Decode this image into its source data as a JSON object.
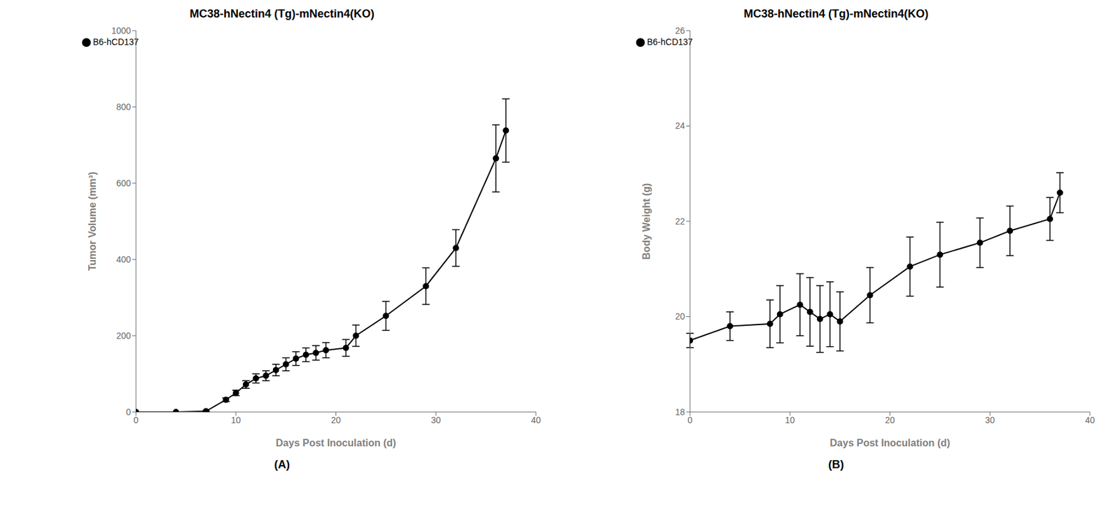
{
  "chart_data": [
    {
      "type": "line",
      "title": "MC38-hNectin4 (Tg)-mNectin4(KO)",
      "x_label": "Days Post Inoculation (d)",
      "y_label": "Tumor Volume (mm³)",
      "annotation": "(A)",
      "x": [
        0,
        4,
        7,
        9,
        10,
        11,
        12,
        13,
        14,
        15,
        16,
        17,
        18,
        19,
        21,
        22,
        25,
        29,
        32,
        36,
        37
      ],
      "series": [
        {
          "name": "B6-hCD137",
          "color": "#000000",
          "marker": "circle",
          "values": [
            0,
            0,
            2,
            32,
            50,
            72,
            88,
            95,
            110,
            125,
            140,
            150,
            155,
            162,
            168,
            200,
            252,
            330,
            430,
            665,
            738
          ],
          "errors": [
            0,
            0,
            1,
            5,
            7,
            10,
            12,
            13,
            15,
            17,
            18,
            18,
            19,
            20,
            22,
            28,
            38,
            48,
            48,
            88,
            83
          ]
        }
      ],
      "xlim": [
        0,
        40
      ],
      "ylim": [
        0,
        1000
      ],
      "xticks": [
        0,
        10,
        20,
        30,
        40
      ],
      "yticks": [
        0,
        200,
        400,
        600,
        800,
        1000
      ],
      "legend": "upper left",
      "grid": false
    },
    {
      "type": "line",
      "title": "MC38-hNectin4 (Tg)-mNectin4(KO)",
      "x_label": "Days Post Inoculation (d)",
      "y_label": "Body Weight (g)",
      "annotation": "(B)",
      "x": [
        0,
        4,
        8,
        9,
        11,
        12,
        13,
        14,
        15,
        18,
        22,
        25,
        29,
        32,
        36,
        37
      ],
      "series": [
        {
          "name": "B6-hCD137",
          "color": "#000000",
          "marker": "circle",
          "values": [
            19.5,
            19.8,
            19.85,
            20.05,
            20.25,
            20.1,
            19.95,
            20.05,
            19.9,
            20.45,
            21.05,
            21.3,
            21.55,
            21.8,
            22.05,
            22.6
          ],
          "errors": [
            0.15,
            0.3,
            0.5,
            0.6,
            0.65,
            0.72,
            0.7,
            0.68,
            0.62,
            0.58,
            0.62,
            0.68,
            0.52,
            0.52,
            0.45,
            0.42
          ]
        }
      ],
      "xlim": [
        0,
        40
      ],
      "ylim": [
        18,
        26
      ],
      "xticks": [
        0,
        10,
        20,
        30,
        40
      ],
      "yticks": [
        18,
        20,
        22,
        24,
        26
      ],
      "legend": "upper left",
      "grid": false
    }
  ]
}
